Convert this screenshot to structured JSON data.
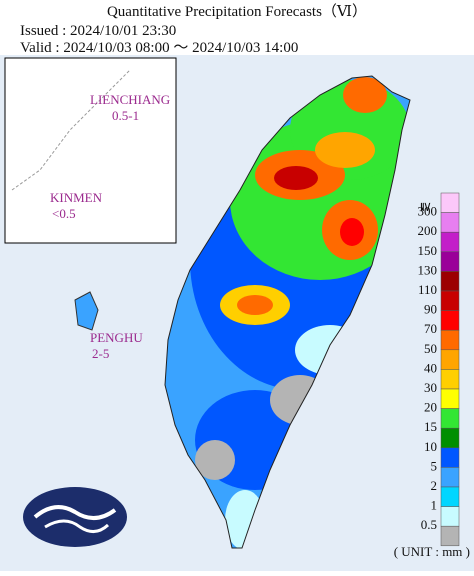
{
  "header": {
    "title": "Quantitative Precipitation Forecasts（Ⅵ）",
    "issued": "Issued : 2024/10/01 23:30",
    "valid": "Valid : 2024/10/03 08:00 ～ 2024/10/03 14:00"
  },
  "islands": [
    {
      "name": "LIENCHIANG",
      "amount": "0.5-1"
    },
    {
      "name": "KINMEN",
      "amount": "<0.5"
    },
    {
      "name": "PENGHU",
      "amount": "2-5"
    }
  ],
  "legend": {
    "top_symbol": "≧",
    "colors": [
      "#fcc8fa",
      "#e77ff0",
      "#c31fc9",
      "#9a0099",
      "#9c0000",
      "#c80000",
      "#ff0000",
      "#ff6a00",
      "#ffa500",
      "#ffcf00",
      "#ffff00",
      "#33e633",
      "#008f00",
      "#0057ff",
      "#3aa3ff",
      "#00d6ff",
      "#c8fbff",
      "#b4b4b4"
    ],
    "labels": [
      "300",
      "200",
      "150",
      "130",
      "110",
      "90",
      "70",
      "50",
      "40",
      "30",
      "20",
      "15",
      "10",
      "5",
      "2",
      "1",
      "0.5"
    ],
    "unit": "( UNIT : mm )"
  }
}
